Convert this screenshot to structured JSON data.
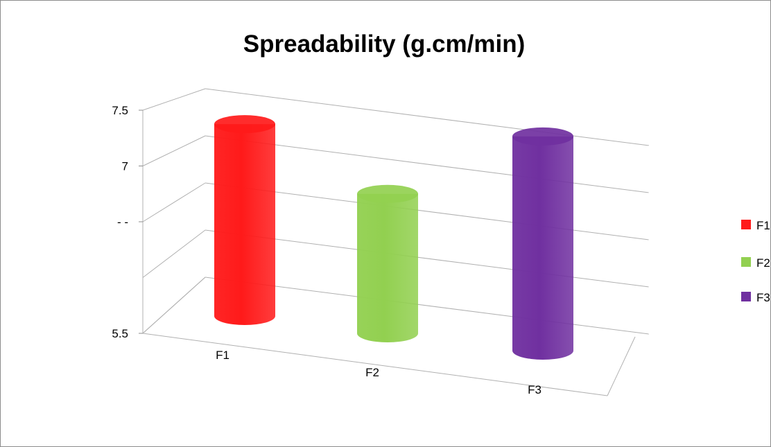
{
  "chart_data": {
    "type": "bar",
    "style": "3d-cylinder",
    "title": "Spreadability (g.cm/min)",
    "categories": [
      "F1",
      "F2",
      "F3"
    ],
    "values": [
      7.22,
      6.75,
      7.42
    ],
    "colors": [
      "#ff1a1a",
      "#92d050",
      "#7030a0"
    ],
    "ylim": [
      5.5,
      7.5
    ],
    "y_tick_labels": [
      {
        "value": 7.5,
        "label": "7.5"
      },
      {
        "value": 7.0,
        "label": "7"
      },
      {
        "value": 6.5,
        "label": "- -"
      },
      {
        "value": 5.5,
        "label": "5.5"
      }
    ],
    "gridlines": true,
    "legend": {
      "position": "right",
      "entries": [
        {
          "label": "F1",
          "color": "#ff1a1a"
        },
        {
          "label": "F2",
          "color": "#92d050"
        },
        {
          "label": "F3",
          "color": "#7030a0"
        }
      ]
    }
  }
}
